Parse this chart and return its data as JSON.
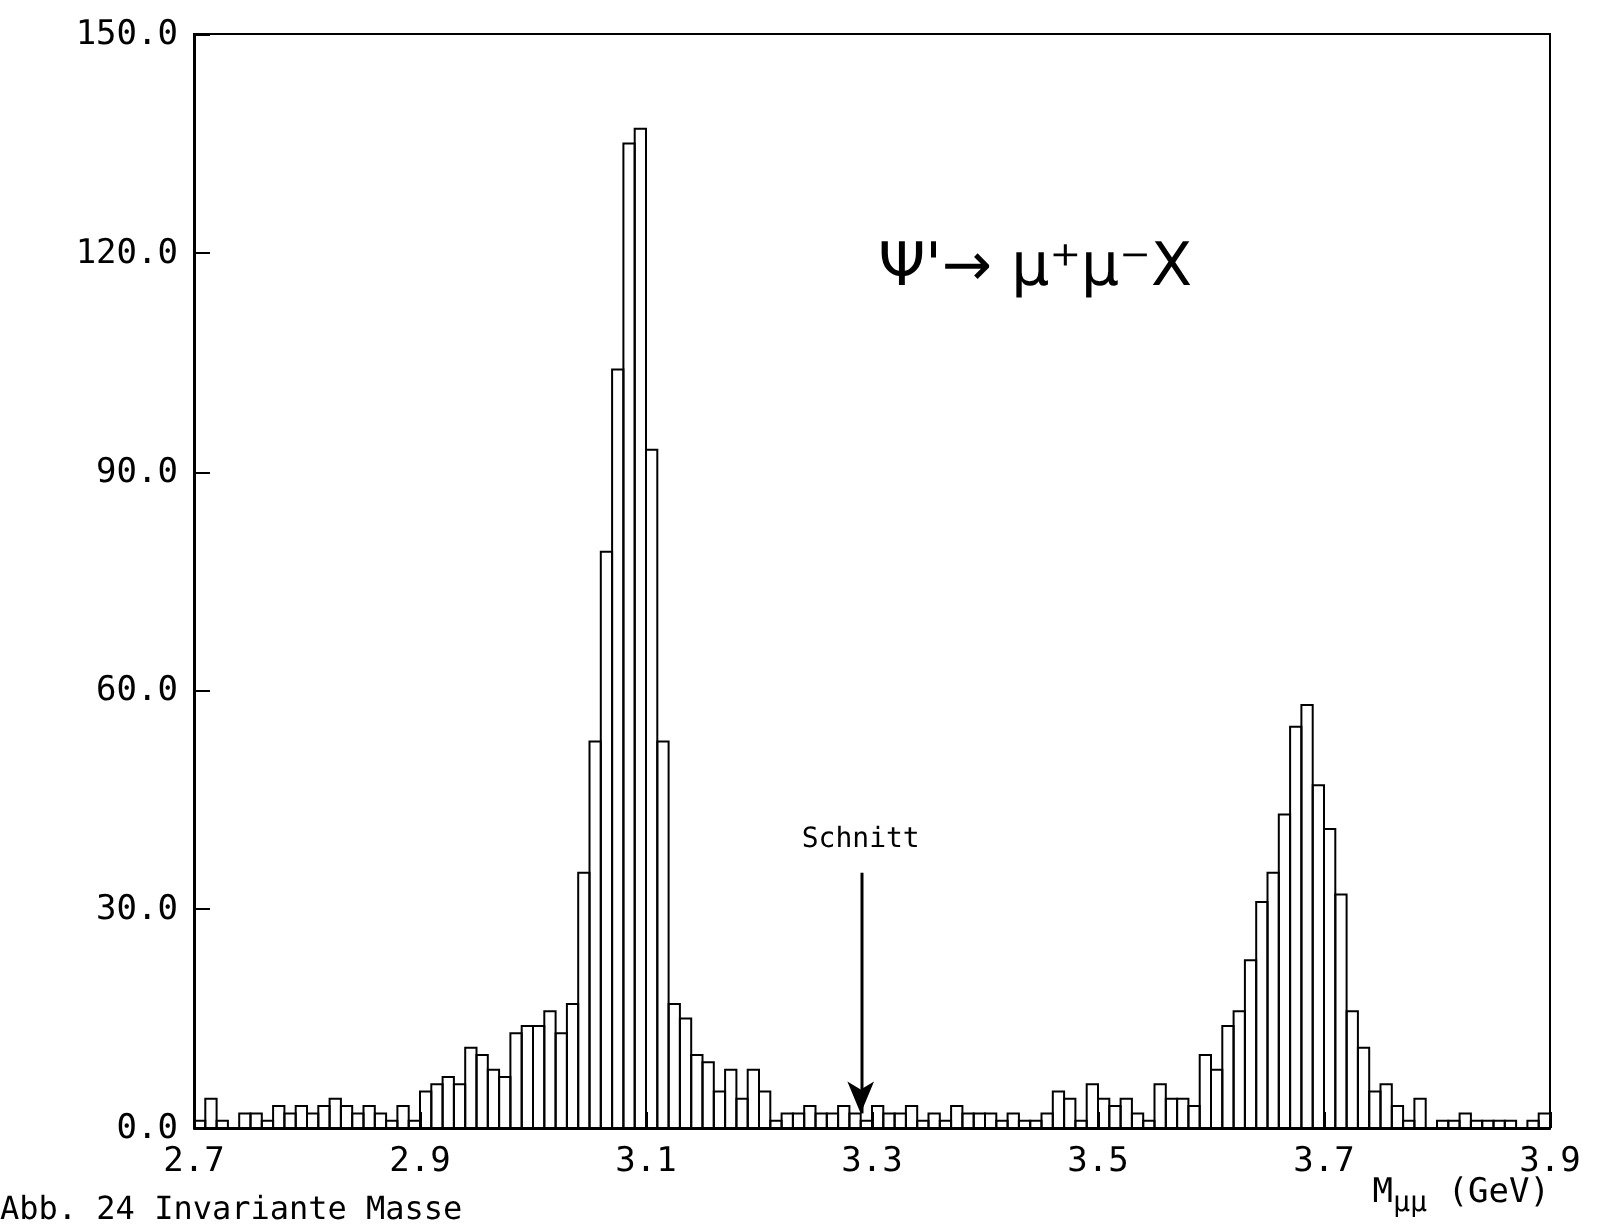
{
  "chart_data": {
    "type": "histogram",
    "xlabel": "M$_{μμ}$ (GeV)",
    "bins": [
      2.7,
      2.71,
      2.72,
      2.73,
      2.74,
      2.75,
      2.76,
      2.77,
      2.78,
      2.79,
      2.8,
      2.81,
      2.82,
      2.83,
      2.84,
      2.85,
      2.86,
      2.87,
      2.88,
      2.89,
      2.9,
      2.91,
      2.92,
      2.93,
      2.94,
      2.95,
      2.96,
      2.97,
      2.98,
      2.99,
      3.0,
      3.01,
      3.02,
      3.03,
      3.04,
      3.05,
      3.06,
      3.07,
      3.08,
      3.09,
      3.1,
      3.11,
      3.12,
      3.13,
      3.14,
      3.15,
      3.16,
      3.17,
      3.18,
      3.19,
      3.2,
      3.21,
      3.22,
      3.23,
      3.24,
      3.25,
      3.26,
      3.27,
      3.28,
      3.29,
      3.3,
      3.31,
      3.32,
      3.33,
      3.34,
      3.35,
      3.36,
      3.37,
      3.38,
      3.39,
      3.4,
      3.41,
      3.42,
      3.43,
      3.44,
      3.45,
      3.46,
      3.47,
      3.48,
      3.49,
      3.5,
      3.51,
      3.52,
      3.53,
      3.54,
      3.55,
      3.56,
      3.57,
      3.58,
      3.59,
      3.6,
      3.61,
      3.62,
      3.63,
      3.64,
      3.65,
      3.66,
      3.67,
      3.68,
      3.69,
      3.7,
      3.71,
      3.72,
      3.73,
      3.74,
      3.75,
      3.76,
      3.77,
      3.78,
      3.79,
      3.8,
      3.81,
      3.82,
      3.83,
      3.84,
      3.85,
      3.86,
      3.87,
      3.88,
      3.89,
      3.9
    ],
    "values": [
      1,
      4,
      1,
      0,
      2,
      2,
      1,
      3,
      2,
      3,
      2,
      3,
      4,
      3,
      2,
      3,
      2,
      1,
      3,
      1,
      5,
      6,
      7,
      6,
      11,
      10,
      8,
      7,
      13,
      14,
      14,
      16,
      13,
      17,
      35,
      53,
      79,
      104,
      135,
      137,
      93,
      53,
      17,
      15,
      10,
      9,
      5,
      8,
      4,
      8,
      5,
      1,
      2,
      2,
      3,
      2,
      2,
      3,
      2,
      1,
      3,
      2,
      2,
      3,
      1,
      2,
      1,
      3,
      2,
      2,
      2,
      1,
      2,
      1,
      1,
      2,
      5,
      4,
      1,
      6,
      4,
      3,
      4,
      2,
      1,
      6,
      4,
      4,
      3,
      10,
      8,
      14,
      16,
      23,
      31,
      35,
      43,
      55,
      58,
      47,
      41,
      32,
      16,
      11,
      5,
      6,
      3,
      1,
      4,
      0,
      1,
      1,
      2,
      1,
      1,
      1,
      1,
      0,
      1,
      2
    ],
    "color": "#000000",
    "xlim": [
      2.7,
      3.9
    ],
    "xticks": [
      2.7,
      2.9,
      3.1,
      3.3,
      3.5,
      3.7,
      3.9
    ],
    "ylim": [
      0,
      150
    ],
    "yticks": [
      {
        "value": 0,
        "label": "0.0"
      },
      {
        "value": 30,
        "label": "30.0"
      },
      {
        "value": 60,
        "label": "60.0"
      },
      {
        "value": 90,
        "label": "90.0"
      },
      {
        "value": 120,
        "label": "120.0"
      },
      {
        "value": 150,
        "label": "150.0"
      }
    ],
    "grid": false,
    "annotations": [
      {
        "text": "Schnitt",
        "x": 3.29,
        "y": 2
      },
      "Ψ'→ μ⁺μ⁻X",
      "Abb. 24 Invariante Masse"
    ]
  }
}
